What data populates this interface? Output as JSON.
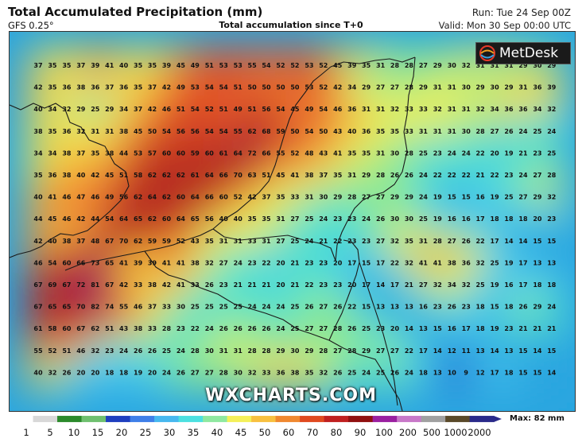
{
  "header": {
    "title": "Total Accumulated Precipitation (mm)",
    "model": "GFS 0.25°",
    "subtitle": "Total accumulation since T+0",
    "run": "Run: Tue 24 Sep 00Z",
    "valid": "Valid: Mon 30 Sep 00:00 UTC"
  },
  "logo": {
    "text": "MetDesk",
    "icon": "metdesk-globe-icon"
  },
  "watermark": "WXCHARTS.COM",
  "legend": {
    "max_label": "Max: 82 mm",
    "ticks": [
      "1",
      "5",
      "10",
      "15",
      "20",
      "25",
      "30",
      "35",
      "40",
      "45",
      "50",
      "60",
      "70",
      "80",
      "90",
      "100",
      "200",
      "500",
      "1000",
      "2000"
    ],
    "colors": [
      "#ffffff",
      "#d8d8d8",
      "#2b8a2b",
      "#6fc06f",
      "#1f3fbf",
      "#3f7fe8",
      "#47b8ef",
      "#4ce0e0",
      "#8fe8a0",
      "#f4f05a",
      "#f8c040",
      "#f08830",
      "#e04a20",
      "#c02020",
      "#901010",
      "#9a20a0",
      "#c878c8",
      "#a0a0a0",
      "#5a4a2a",
      "#2a2a8a"
    ]
  },
  "grid_values": [
    [
      37,
      35,
      35,
      37,
      39,
      41,
      40,
      35,
      35,
      39,
      45,
      49,
      51,
      53,
      53,
      55,
      54,
      52,
      52,
      53,
      52,
      45,
      39,
      35,
      31,
      28,
      28,
      27,
      29,
      30,
      32,
      31,
      31,
      31,
      29,
      30,
      29
    ],
    [
      42,
      35,
      36,
      38,
      36,
      37,
      36,
      35,
      37,
      42,
      49,
      53,
      54,
      54,
      51,
      50,
      50,
      50,
      50,
      53,
      52,
      42,
      34,
      29,
      27,
      27,
      28,
      29,
      31,
      31,
      30,
      29,
      30,
      29,
      31,
      36,
      39
    ],
    [
      40,
      34,
      32,
      29,
      25,
      29,
      34,
      37,
      42,
      46,
      51,
      54,
      52,
      51,
      49,
      51,
      56,
      54,
      45,
      49,
      54,
      46,
      36,
      31,
      31,
      32,
      33,
      33,
      32,
      31,
      31,
      32,
      34,
      36,
      36,
      34,
      32
    ],
    [
      38,
      35,
      36,
      32,
      31,
      31,
      38,
      45,
      50,
      54,
      56,
      56,
      54,
      54,
      55,
      62,
      68,
      59,
      50,
      54,
      50,
      43,
      40,
      36,
      35,
      35,
      33,
      31,
      31,
      31,
      30,
      28,
      27,
      26,
      24,
      25,
      24
    ],
    [
      34,
      34,
      38,
      37,
      35,
      38,
      44,
      53,
      57,
      60,
      60,
      59,
      60,
      61,
      64,
      72,
      66,
      55,
      52,
      48,
      43,
      41,
      35,
      35,
      31,
      30,
      28,
      25,
      23,
      24,
      24,
      22,
      20,
      19,
      21,
      23,
      25
    ],
    [
      35,
      36,
      38,
      40,
      42,
      45,
      51,
      58,
      62,
      62,
      62,
      61,
      64,
      66,
      70,
      63,
      51,
      45,
      41,
      38,
      37,
      35,
      31,
      29,
      28,
      26,
      26,
      24,
      22,
      22,
      22,
      21,
      22,
      23,
      24,
      27,
      28
    ],
    [
      40,
      41,
      46,
      47,
      46,
      49,
      56,
      62,
      64,
      62,
      60,
      64,
      66,
      60,
      52,
      42,
      37,
      35,
      33,
      31,
      30,
      29,
      28,
      27,
      27,
      29,
      29,
      24,
      19,
      15,
      15,
      16,
      19,
      25,
      27,
      29,
      32
    ],
    [
      44,
      45,
      46,
      42,
      44,
      54,
      64,
      65,
      62,
      60,
      64,
      65,
      56,
      40,
      40,
      35,
      35,
      31,
      27,
      25,
      24,
      23,
      23,
      24,
      26,
      30,
      30,
      25,
      19,
      16,
      16,
      17,
      18,
      18,
      18,
      20,
      23
    ],
    [
      42,
      40,
      38,
      37,
      48,
      67,
      70,
      62,
      59,
      59,
      52,
      43,
      35,
      31,
      31,
      33,
      31,
      27,
      25,
      24,
      21,
      22,
      23,
      23,
      27,
      32,
      35,
      31,
      28,
      27,
      26,
      22,
      17,
      14,
      14,
      15,
      15
    ],
    [
      46,
      54,
      60,
      66,
      73,
      65,
      41,
      39,
      39,
      41,
      41,
      38,
      32,
      27,
      24,
      23,
      22,
      20,
      21,
      23,
      23,
      20,
      17,
      15,
      17,
      22,
      32,
      41,
      41,
      38,
      36,
      32,
      25,
      19,
      17,
      13,
      13
    ],
    [
      67,
      69,
      67,
      72,
      81,
      67,
      42,
      33,
      38,
      42,
      41,
      33,
      26,
      23,
      21,
      21,
      21,
      20,
      21,
      22,
      23,
      23,
      20,
      17,
      14,
      17,
      21,
      27,
      32,
      34,
      32,
      25,
      19,
      16,
      17,
      18,
      18
    ],
    [
      67,
      65,
      65,
      70,
      82,
      74,
      55,
      46,
      37,
      33,
      30,
      25,
      25,
      25,
      25,
      24,
      24,
      24,
      25,
      26,
      27,
      26,
      22,
      15,
      13,
      13,
      13,
      16,
      23,
      26,
      23,
      18,
      15,
      18,
      26,
      29,
      24
    ],
    [
      61,
      58,
      60,
      67,
      62,
      51,
      43,
      38,
      33,
      28,
      23,
      22,
      24,
      26,
      26,
      26,
      26,
      24,
      25,
      27,
      27,
      28,
      26,
      25,
      23,
      20,
      14,
      13,
      15,
      16,
      17,
      18,
      19,
      23,
      21,
      21,
      21
    ],
    [
      55,
      52,
      51,
      46,
      32,
      23,
      24,
      26,
      26,
      25,
      24,
      28,
      30,
      31,
      31,
      28,
      28,
      29,
      30,
      29,
      28,
      27,
      28,
      29,
      27,
      27,
      22,
      17,
      14,
      12,
      11,
      13,
      14,
      13,
      15,
      14,
      15
    ],
    [
      40,
      32,
      26,
      20,
      20,
      18,
      18,
      19,
      20,
      24,
      26,
      27,
      27,
      28,
      30,
      32,
      33,
      36,
      38,
      35,
      32,
      26,
      25,
      24,
      25,
      26,
      24,
      18,
      13,
      10,
      9,
      12,
      17,
      18,
      15,
      15,
      14
    ]
  ]
}
